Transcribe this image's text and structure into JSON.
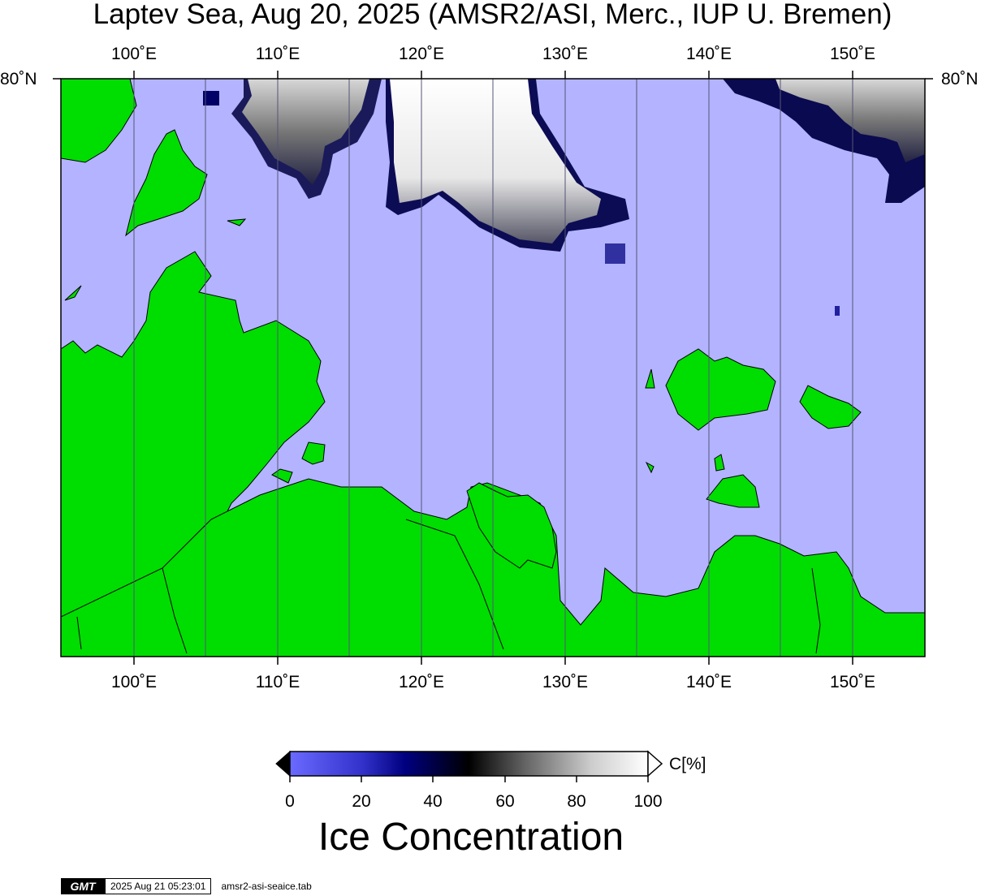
{
  "title": "Laptev Sea, Aug 20, 2025 (AMSR2/ASI, Merc., IUP U. Bremen)",
  "map": {
    "lon_ticks_top": [
      "100˚E",
      "110˚E",
      "120˚E",
      "130˚E",
      "140˚E",
      "150˚E"
    ],
    "lon_ticks_bottom": [
      "100˚E",
      "110˚E",
      "120˚E",
      "130˚E",
      "140˚E",
      "150˚E"
    ],
    "lat_label_left": "80˚N",
    "lat_label_right": "80˚N",
    "colors": {
      "ocean": "#b3b3ff",
      "land": "#00dd00",
      "coastline": "#000000"
    }
  },
  "colorbar": {
    "unit_label": "C[%]",
    "ticks": [
      "0",
      "20",
      "40",
      "60",
      "80",
      "100"
    ],
    "title": "Ice Concentration",
    "stops": [
      "#6a6aff",
      "#3030cc",
      "#000080",
      "#000000",
      "#666666",
      "#cccccc",
      "#ffffff"
    ]
  },
  "footer": {
    "logo": "GMT",
    "timestamp": "2025 Aug 21 05:23:01",
    "filename": "amsr2-asi-seaice.tab"
  }
}
